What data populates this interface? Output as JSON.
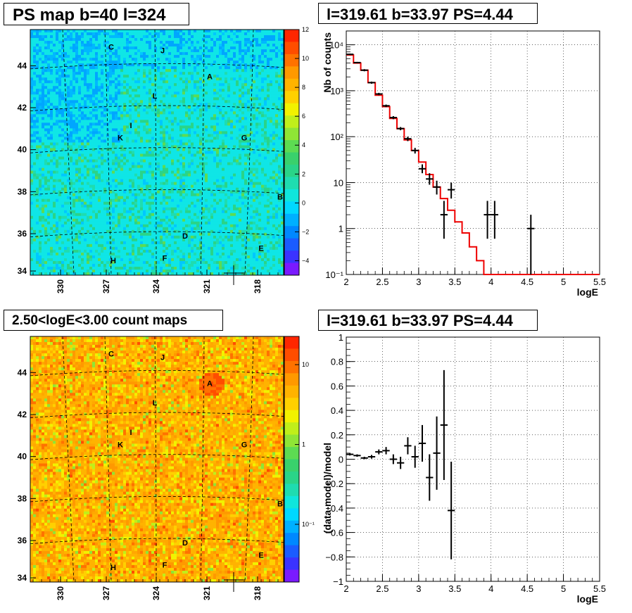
{
  "chart_data": [
    {
      "type": "heatmap",
      "title": "PS map b=40 l=324",
      "x_ticks": [
        "330",
        "327",
        "324",
        "321",
        "318"
      ],
      "y_ticks": [
        "44",
        "42",
        "40",
        "38",
        "36",
        "34"
      ],
      "colorbar_ticks": [
        "12",
        "10",
        "8",
        "6",
        "4",
        "2",
        "0",
        "−2",
        "−4"
      ],
      "colorbar_range": [
        -5,
        12
      ],
      "sources": [
        "C",
        "J",
        "A",
        "L",
        "I",
        "K",
        "G",
        "B",
        "D",
        "E",
        "H",
        "F"
      ]
    },
    {
      "type": "line",
      "title": "l=319.61 b=33.97 PS=4.44",
      "xlabel": "logE",
      "ylabel": "Nb of counts",
      "xlim": [
        2,
        5.5
      ],
      "ylim": [
        0.1,
        20000
      ],
      "yscale": "log",
      "x_ticks": [
        "2",
        "2.5",
        "3",
        "3.5",
        "4",
        "4.5",
        "5",
        "5.5"
      ],
      "y_ticks": [
        "10⁴",
        "10³",
        "10²",
        "10",
        "1",
        "10⁻¹"
      ],
      "model_edges": [
        2.0,
        2.1,
        2.2,
        2.3,
        2.4,
        2.5,
        2.6,
        2.7,
        2.8,
        2.9,
        3.0,
        3.1,
        3.2,
        3.3,
        3.4,
        3.5,
        3.6,
        3.7,
        3.8,
        3.9,
        4.0,
        4.1,
        4.2,
        4.3,
        4.4,
        4.5,
        4.6,
        4.7,
        4.8,
        4.9,
        5.0,
        5.1,
        5.2,
        5.3,
        5.4,
        5.5
      ],
      "model_values": [
        6000,
        4000,
        2800,
        1500,
        800,
        450,
        250,
        150,
        85,
        50,
        28,
        15,
        8,
        4.5,
        2.5,
        1.4,
        0.8,
        0.4,
        0.2,
        0.1,
        0.1,
        0.1,
        0.1,
        0.1,
        0.1,
        0.1,
        0.1,
        0.1,
        0.1,
        0.1,
        0.1,
        0.1,
        0.1,
        0.1,
        0.1
      ],
      "data_points": [
        {
          "x": 2.05,
          "y": 6200,
          "lo": 6000,
          "hi": 6400
        },
        {
          "x": 2.15,
          "y": 4100,
          "lo": 3950,
          "hi": 4250
        },
        {
          "x": 2.25,
          "y": 2800,
          "lo": 2650,
          "hi": 2950
        },
        {
          "x": 2.35,
          "y": 1500,
          "lo": 1420,
          "hi": 1580
        },
        {
          "x": 2.45,
          "y": 850,
          "lo": 800,
          "hi": 900
        },
        {
          "x": 2.55,
          "y": 470,
          "lo": 440,
          "hi": 500
        },
        {
          "x": 2.65,
          "y": 260,
          "lo": 240,
          "hi": 280
        },
        {
          "x": 2.75,
          "y": 150,
          "lo": 138,
          "hi": 162
        },
        {
          "x": 2.85,
          "y": 90,
          "lo": 80,
          "hi": 100
        },
        {
          "x": 2.95,
          "y": 50,
          "lo": 43,
          "hi": 57
        },
        {
          "x": 3.05,
          "y": 20,
          "lo": 16,
          "hi": 25
        },
        {
          "x": 3.15,
          "y": 12,
          "lo": 9,
          "hi": 16
        },
        {
          "x": 3.25,
          "y": 8,
          "lo": 5.5,
          "hi": 11
        },
        {
          "x": 3.35,
          "y": 2,
          "lo": 0.6,
          "hi": 4
        },
        {
          "x": 3.45,
          "y": 7,
          "lo": 4.5,
          "hi": 10
        },
        {
          "x": 3.95,
          "y": 2,
          "lo": 0.6,
          "hi": 4
        },
        {
          "x": 4.05,
          "y": 2,
          "lo": 0.6,
          "hi": 4
        },
        {
          "x": 4.55,
          "y": 1,
          "lo": 0.1,
          "hi": 2
        }
      ]
    },
    {
      "type": "heatmap",
      "title": "2.50<logE<3.00 count maps",
      "x_ticks": [
        "330",
        "327",
        "324",
        "321",
        "318"
      ],
      "y_ticks": [
        "44",
        "42",
        "40",
        "38",
        "36",
        "34"
      ],
      "colorbar_ticks": [
        "10",
        "1",
        "10⁻¹"
      ],
      "colorbar_scale": "log",
      "sources": [
        "C",
        "J",
        "A",
        "L",
        "I",
        "K",
        "G",
        "B",
        "D",
        "E",
        "H",
        "F"
      ]
    },
    {
      "type": "scatter",
      "title": "l=319.61 b=33.97 PS=4.44",
      "xlabel": "logE",
      "ylabel": "(data-model)/model",
      "xlim": [
        2,
        5.5
      ],
      "ylim": [
        -1,
        1
      ],
      "x_ticks": [
        "2",
        "2.5",
        "3",
        "3.5",
        "4",
        "4.5",
        "5",
        "5.5"
      ],
      "y_ticks": [
        "1",
        "0.8",
        "0.6",
        "0.4",
        "0.2",
        "0",
        "−0.2",
        "−0.4",
        "−0.6",
        "−0.8",
        "−1"
      ],
      "data_points": [
        {
          "x": 2.05,
          "y": 0.04,
          "err": 0.01
        },
        {
          "x": 2.15,
          "y": 0.03,
          "err": 0.01
        },
        {
          "x": 2.25,
          "y": 0.01,
          "err": 0.01
        },
        {
          "x": 2.35,
          "y": 0.02,
          "err": 0.015
        },
        {
          "x": 2.45,
          "y": 0.06,
          "err": 0.02
        },
        {
          "x": 2.55,
          "y": 0.07,
          "err": 0.03
        },
        {
          "x": 2.65,
          "y": 0.0,
          "err": 0.04
        },
        {
          "x": 2.75,
          "y": -0.03,
          "err": 0.05
        },
        {
          "x": 2.85,
          "y": 0.11,
          "err": 0.07
        },
        {
          "x": 2.95,
          "y": 0.02,
          "err": 0.09
        },
        {
          "x": 3.05,
          "y": 0.13,
          "err": 0.15
        },
        {
          "x": 3.15,
          "y": -0.15,
          "err": 0.19
        },
        {
          "x": 3.25,
          "y": 0.05,
          "err": 0.3
        },
        {
          "x": 3.35,
          "y": 0.28,
          "err": 0.45
        },
        {
          "x": 3.45,
          "y": -0.42,
          "err": 0.4
        }
      ]
    }
  ]
}
